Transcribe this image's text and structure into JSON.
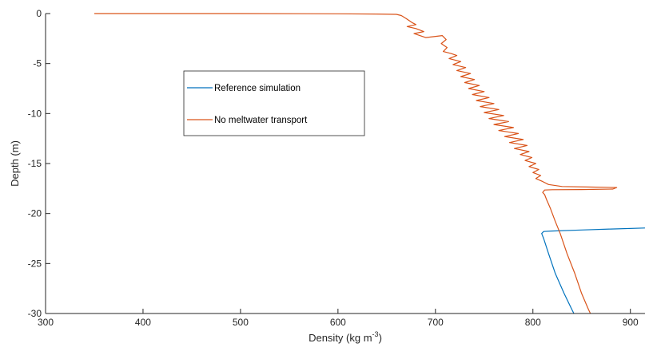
{
  "chart_data": {
    "type": "line",
    "xlabel": "Density (kg m",
    "xlabel_sup": "-3",
    "xlabel_close": ")",
    "ylabel": "Depth (m)",
    "xlim": [
      300,
      915
    ],
    "ylim": [
      -30,
      0
    ],
    "xticks": [
      "300",
      "400",
      "500",
      "600",
      "700",
      "800",
      "900"
    ],
    "yticks": [
      "0",
      "-5",
      "-10",
      "-15",
      "-20",
      "-25",
      "-30"
    ],
    "legend_position": "upper-left-inner",
    "series": [
      {
        "name": "Reference simulation",
        "color": "#0072BD",
        "points": [
          [
            915,
            -21.45
          ],
          [
            880,
            -21.55
          ],
          [
            850,
            -21.65
          ],
          [
            820,
            -21.75
          ],
          [
            811,
            -21.8
          ],
          [
            809,
            -22.0
          ],
          [
            811,
            -22.5
          ],
          [
            816,
            -24.0
          ],
          [
            823,
            -26.0
          ],
          [
            832,
            -28.0
          ],
          [
            840,
            -29.6
          ],
          [
            842,
            -30.0
          ]
        ]
      },
      {
        "name": "No meltwater transport",
        "color": "#D95319",
        "points": [
          [
            350,
            0.0
          ],
          [
            500,
            0.0
          ],
          [
            600,
            -0.02
          ],
          [
            640,
            -0.05
          ],
          [
            660,
            -0.08
          ],
          [
            665,
            -0.2
          ],
          [
            670,
            -0.5
          ],
          [
            676,
            -0.9
          ],
          [
            680,
            -1.1
          ],
          [
            671,
            -1.3
          ],
          [
            680,
            -1.5
          ],
          [
            688,
            -1.8
          ],
          [
            678,
            -2.0
          ],
          [
            690,
            -2.4
          ],
          [
            707,
            -2.2
          ],
          [
            711,
            -2.6
          ],
          [
            706,
            -3.0
          ],
          [
            712,
            -3.4
          ],
          [
            708,
            -3.8
          ],
          [
            716,
            -4.0
          ],
          [
            722,
            -4.2
          ],
          [
            714,
            -4.5
          ],
          [
            726,
            -4.8
          ],
          [
            718,
            -5.1
          ],
          [
            731,
            -5.4
          ],
          [
            722,
            -5.7
          ],
          [
            736,
            -6.0
          ],
          [
            726,
            -6.3
          ],
          [
            740,
            -6.6
          ],
          [
            730,
            -6.9
          ],
          [
            745,
            -7.2
          ],
          [
            734,
            -7.5
          ],
          [
            750,
            -7.8
          ],
          [
            738,
            -8.1
          ],
          [
            755,
            -8.4
          ],
          [
            742,
            -8.7
          ],
          [
            760,
            -9.0
          ],
          [
            746,
            -9.3
          ],
          [
            765,
            -9.6
          ],
          [
            750,
            -9.9
          ],
          [
            770,
            -10.2
          ],
          [
            755,
            -10.5
          ],
          [
            775,
            -10.8
          ],
          [
            760,
            -11.1
          ],
          [
            780,
            -11.4
          ],
          [
            765,
            -11.7
          ],
          [
            785,
            -12.0
          ],
          [
            771,
            -12.3
          ],
          [
            790,
            -12.6
          ],
          [
            776,
            -12.9
          ],
          [
            794,
            -13.2
          ],
          [
            781,
            -13.5
          ],
          [
            796,
            -13.8
          ],
          [
            787,
            -14.1
          ],
          [
            799,
            -14.4
          ],
          [
            792,
            -14.7
          ],
          [
            803,
            -15.0
          ],
          [
            796,
            -15.3
          ],
          [
            806,
            -15.6
          ],
          [
            800,
            -15.9
          ],
          [
            808,
            -16.2
          ],
          [
            803,
            -16.5
          ],
          [
            810,
            -16.8
          ],
          [
            816,
            -17.1
          ],
          [
            830,
            -17.3
          ],
          [
            860,
            -17.35
          ],
          [
            886,
            -17.4
          ],
          [
            882,
            -17.55
          ],
          [
            850,
            -17.6
          ],
          [
            820,
            -17.62
          ],
          [
            812,
            -17.65
          ],
          [
            810,
            -17.9
          ],
          [
            812,
            -18.1
          ],
          [
            814,
            -18.6
          ],
          [
            818,
            -19.5
          ],
          [
            823,
            -20.8
          ],
          [
            828,
            -22.0
          ],
          [
            835,
            -24.0
          ],
          [
            843,
            -26.0
          ],
          [
            850,
            -28.0
          ],
          [
            857,
            -29.6
          ],
          [
            859,
            -30.0
          ]
        ]
      }
    ]
  }
}
